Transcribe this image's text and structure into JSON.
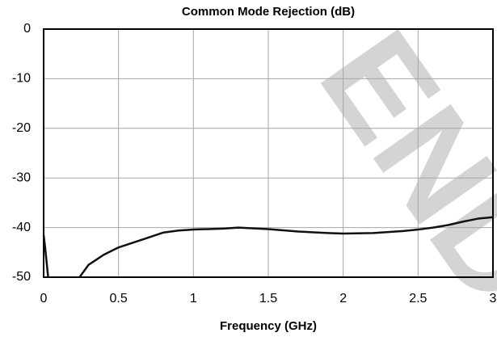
{
  "chart_data": {
    "type": "line",
    "title": "Common Mode Rejection (dB)",
    "x_label": "Frequency  (GHz)",
    "watermark": "END",
    "x": [
      0,
      0.01,
      0.02,
      0.03,
      0.1,
      0.24,
      0.3,
      0.4,
      0.5,
      0.6,
      0.7,
      0.8,
      0.9,
      1.0,
      1.2,
      1.3,
      1.5,
      1.7,
      1.9,
      2.0,
      2.2,
      2.4,
      2.5,
      2.6,
      2.7,
      2.8,
      2.9,
      3.0
    ],
    "series": [
      {
        "name": "Common Mode Rejection",
        "color": "#111111",
        "values": [
          -41.5,
          -44,
          -47,
          -50,
          null,
          -50,
          -47.5,
          -45.5,
          -44,
          -43,
          -42,
          -41,
          -40.6,
          -40.4,
          -40.2,
          -40,
          -40.3,
          -40.8,
          -41.1,
          -41.2,
          -41.1,
          -40.7,
          -40.4,
          -40,
          -39.5,
          -38.8,
          -38.2,
          -37.9
        ]
      }
    ],
    "xlim": [
      0,
      3
    ],
    "xticks": [
      0,
      0.5,
      1,
      1.5,
      2,
      2.5,
      3
    ],
    "ylim": [
      -50,
      0
    ],
    "yticks": [
      0,
      -10,
      -20,
      -30,
      -40,
      -50
    ],
    "grid": true
  }
}
